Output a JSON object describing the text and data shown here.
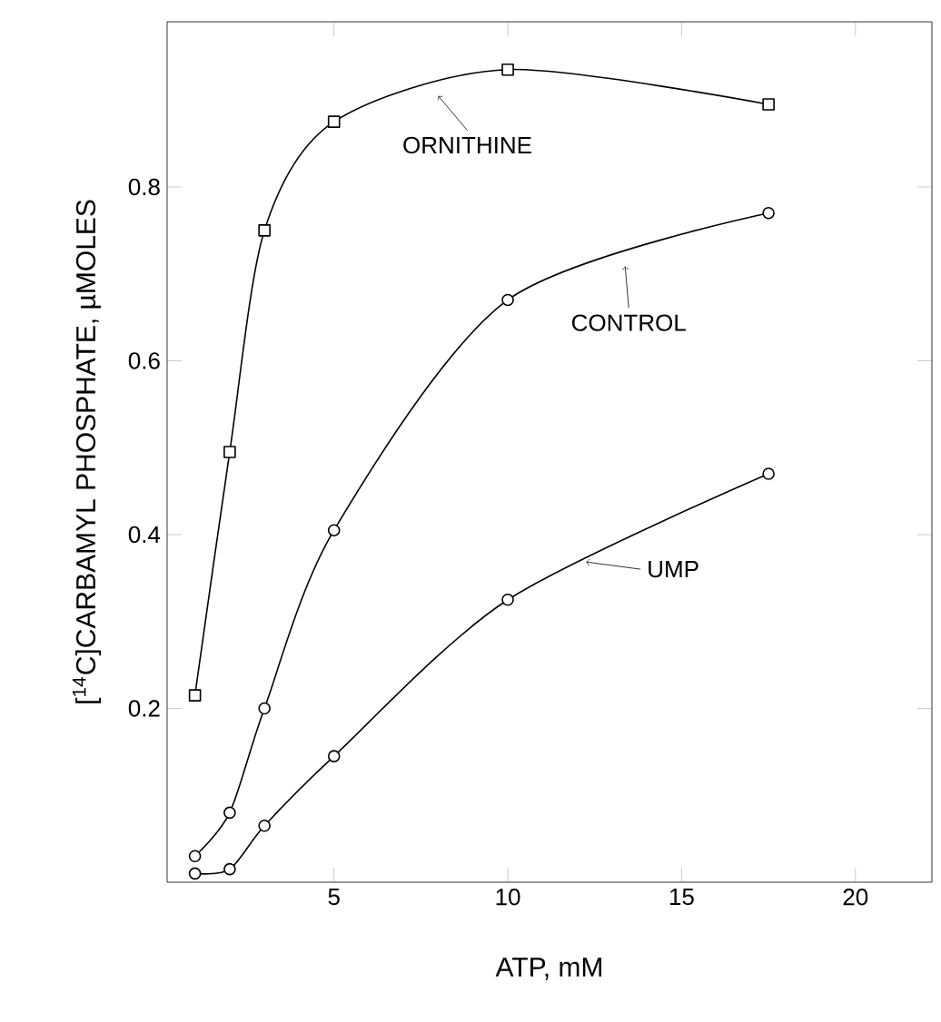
{
  "chart_data": {
    "type": "line",
    "xlabel": "ATP, mM",
    "ylabel": "[$^{14}$C]CARBAMYL PHOSPHATE, µMOLES",
    "x": [
      1,
      2,
      3,
      5,
      10,
      17.5
    ],
    "series": [
      {
        "color": "#000000",
        "marker": "square",
        "values": [
          0.215,
          0.495,
          0.75,
          0.875,
          0.935,
          0.895
        ]
      },
      {
        "color": "#000000",
        "marker": "circle",
        "values": [
          0.03,
          0.08,
          0.2,
          0.405,
          0.67,
          0.77
        ]
      },
      {
        "color": "#000000",
        "marker": "circle",
        "values": [
          0.01,
          0.015,
          0.065,
          0.145,
          0.325,
          0.47
        ]
      }
    ],
    "annotations": [
      "ORNITHINE",
      "CONTROL",
      "UMP"
    ],
    "xlim": [
      0.2,
      22.2
    ],
    "ylim": [
      0,
      0.99
    ],
    "xticks": [
      5,
      10,
      15,
      20
    ],
    "yticks": [
      {
        "value": 0.2,
        "label": "0.2"
      },
      {
        "value": 0.4,
        "label": "0.4"
      },
      {
        "value": 0.6,
        "label": "0.6"
      },
      {
        "value": 0.8,
        "label": "0.8"
      }
    ],
    "grid": false,
    "line_style": "solid"
  }
}
